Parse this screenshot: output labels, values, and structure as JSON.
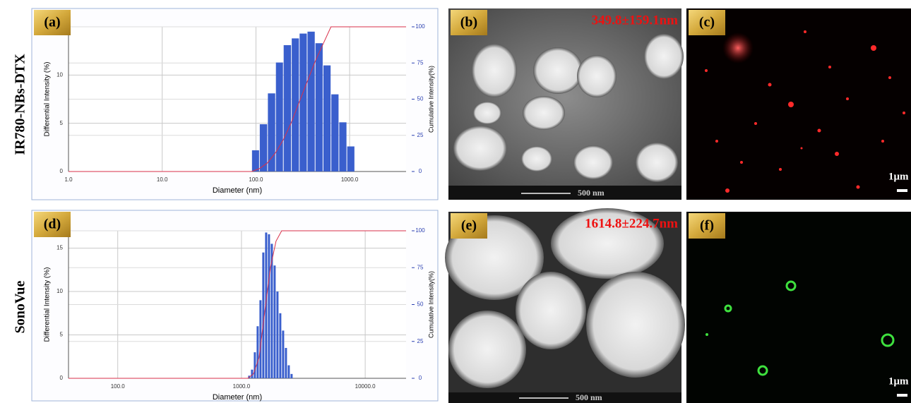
{
  "row_labels": [
    "IR780-NBs-DTX",
    "SonoVue"
  ],
  "chart_data": [
    {
      "type": "histogram",
      "label": "(a)",
      "xlabel": "Diameter (nm)",
      "ylabel": "Differential Intensity (%)",
      "y2label": "Cumulative Intensity(%)",
      "log_x": true,
      "grid": true,
      "color": "#3a5fcd",
      "xlim": [
        1,
        4000
      ],
      "xticks": [
        {
          "value": 1,
          "label": "1.0"
        },
        {
          "value": 10,
          "label": "10.0"
        },
        {
          "value": 100,
          "label": "100.0"
        },
        {
          "value": 1000,
          "label": "1000.0"
        }
      ],
      "ylim": [
        0,
        15
      ],
      "yticks": [
        0,
        5,
        10
      ],
      "y2lim": [
        0,
        100
      ],
      "y2ticks": [
        0,
        25,
        50,
        75,
        100
      ],
      "bins": [
        90,
        109,
        133,
        162,
        196,
        239,
        290,
        352,
        428,
        520,
        632,
        768,
        933,
        1134
      ],
      "values": [
        2.2,
        4.9,
        8.1,
        11.3,
        13.1,
        13.8,
        14.3,
        14.5,
        13.3,
        11.0,
        8.0,
        5.1,
        2.6
      ],
      "cumulative": {
        "axis": "y2",
        "color": "#d9304a",
        "x": [
          1,
          90,
          109,
          133,
          162,
          196,
          239,
          290,
          352,
          428,
          520,
          632,
          4000
        ],
        "values": [
          0,
          0,
          2,
          6,
          13,
          22,
          34,
          48,
          62,
          76,
          88,
          100,
          100
        ]
      }
    },
    {
      "type": "histogram",
      "label": "(d)",
      "xlabel": "Diameter (nm)",
      "ylabel": "Differential Intensity (%)",
      "y2label": "Cumulative Intensity(%)",
      "log_x": true,
      "grid": true,
      "color": "#3a5fcd",
      "xlim": [
        40,
        21400
      ],
      "xticks": [
        {
          "value": 100,
          "label": "100.0"
        },
        {
          "value": 1000,
          "label": "1000.0"
        },
        {
          "value": 10000,
          "label": "10000.0"
        }
      ],
      "ylim": [
        0,
        17
      ],
      "yticks": [
        0,
        5,
        10,
        15
      ],
      "y2lim": [
        0,
        100
      ],
      "y2ticks": [
        0,
        25,
        50,
        75,
        100
      ],
      "bins": [
        1125,
        1186,
        1250,
        1317,
        1388,
        1463,
        1542,
        1626,
        1713,
        1806,
        1903,
        2006,
        2114,
        2229,
        2349,
        2476,
        2609
      ],
      "values": [
        0.3,
        1,
        3,
        6,
        9,
        14.5,
        16.8,
        16.6,
        15.5,
        13,
        10,
        7.5,
        5.5,
        3.5,
        1.5,
        0.5
      ],
      "cumulative": {
        "axis": "y2",
        "color": "#d9304a",
        "x": [
          40,
          1125,
          1250,
          1388,
          1542,
          1713,
          1903,
          2114,
          21400
        ],
        "values": [
          0,
          0,
          3,
          14,
          45,
          75,
          93,
          100,
          100
        ]
      }
    }
  ],
  "images": [
    {
      "label": "(b)",
      "size": "349.8±159.1nm",
      "scale_bar": "500 nm"
    },
    {
      "label": "(c)",
      "scale_bar": "1μm"
    },
    {
      "label": "(e)",
      "size": "1614.8±224.7nm",
      "scale_bar": "500 nm"
    },
    {
      "label": "(f)",
      "scale_bar": "1μm"
    }
  ]
}
